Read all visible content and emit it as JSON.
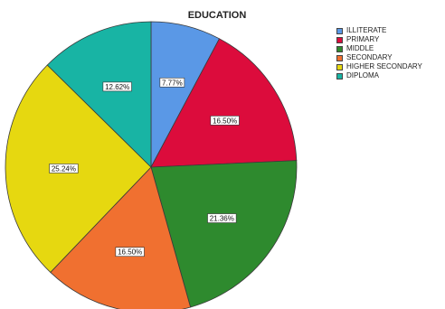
{
  "chart_data": {
    "type": "pie",
    "title": "EDUCATION",
    "categories": [
      "ILLITERATE",
      "PRIMARY",
      "MIDDLE",
      "SECONDARY",
      "HIGHER SECONDARY",
      "DIPLOMA"
    ],
    "values": [
      7.77,
      16.5,
      21.36,
      16.5,
      25.24,
      12.62
    ],
    "labels": [
      "7.77%",
      "16.50%",
      "21.36%",
      "16.50%",
      "25.24%",
      "12.62%"
    ],
    "colors": [
      "#5a98e6",
      "#dc0c3c",
      "#2e8a2e",
      "#f07030",
      "#e6d810",
      "#18b4a4"
    ],
    "start": "top",
    "direction": "clockwise",
    "legend_position": "right"
  }
}
